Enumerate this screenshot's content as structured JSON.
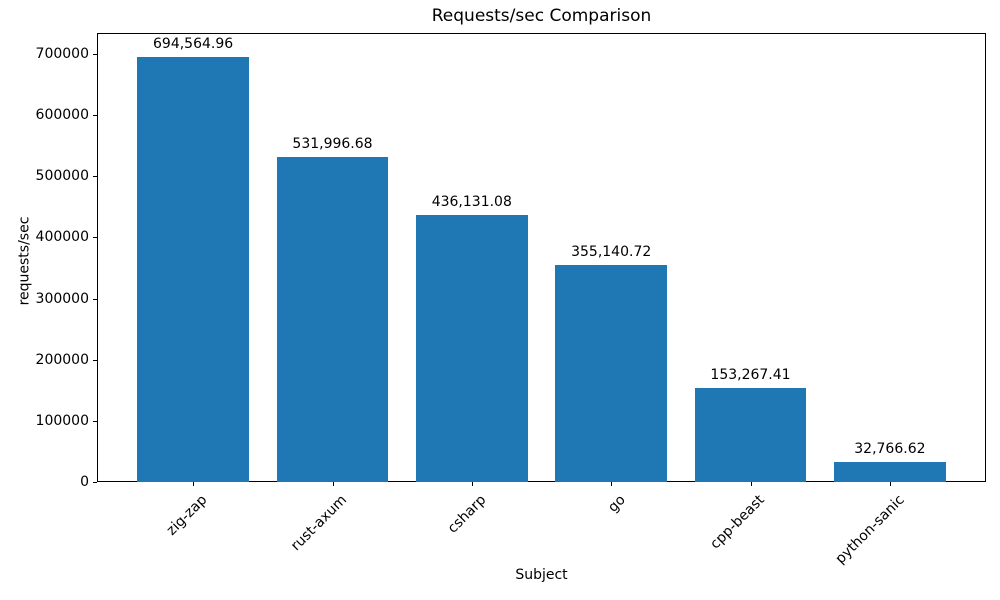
{
  "chart_data": {
    "type": "bar",
    "title": "Requests/sec Comparison",
    "xlabel": "Subject",
    "ylabel": "requests/sec",
    "categories": [
      "zig-zap",
      "rust-axum",
      "csharp",
      "go",
      "cpp-beast",
      "python-sanic"
    ],
    "values": [
      694564.96,
      531996.68,
      436131.08,
      355140.72,
      153267.41,
      32766.62
    ],
    "value_labels": [
      "694,564.96",
      "531,996.68",
      "436,131.08",
      "355,140.72",
      "153,267.41",
      "32,766.62"
    ],
    "yticks": [
      0,
      100000,
      200000,
      300000,
      400000,
      500000,
      600000,
      700000
    ],
    "ylim": [
      0,
      734380
    ],
    "bar_color": "#1f77b4",
    "grid": false,
    "legend_position": "none"
  }
}
